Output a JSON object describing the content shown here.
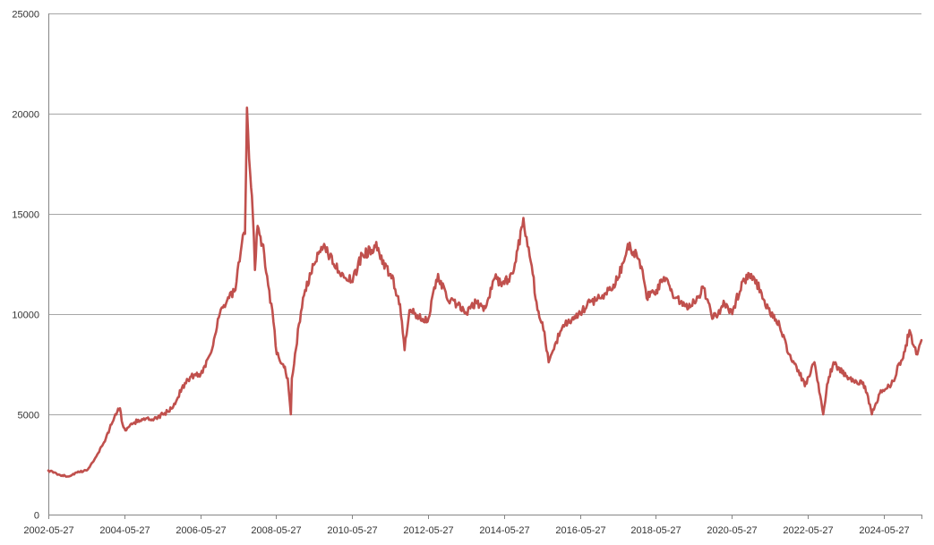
{
  "chart_data": {
    "type": "line",
    "title": "",
    "xlabel": "",
    "ylabel": "",
    "grid": true,
    "legend": "none",
    "line_color": "#c0504d",
    "ylim": [
      0,
      25000
    ],
    "xlim": [
      "2002-05-27",
      "2025-05-27"
    ],
    "y_ticks": [
      "0",
      "5000",
      "10000",
      "15000",
      "20000",
      "25000"
    ],
    "x_ticks": [
      "2002-05-27",
      "2004-05-27",
      "2006-05-27",
      "2008-05-27",
      "2010-05-27",
      "2012-05-27",
      "2014-05-27",
      "2016-05-27",
      "2018-05-27",
      "2020-05-27",
      "2022-05-27",
      "2024-05-27"
    ],
    "series": [
      {
        "x": [
          "2002-05-27",
          "2002-09-01",
          "2002-12-01",
          "2003-03-01",
          "2003-06-01",
          "2003-09-01",
          "2003-12-01",
          "2004-03-01",
          "2004-04-15",
          "2004-05-10",
          "2004-06-15",
          "2004-09-01",
          "2004-12-01",
          "2005-03-01",
          "2005-06-01",
          "2005-09-01",
          "2005-12-01",
          "2006-03-01",
          "2006-06-01",
          "2006-09-01",
          "2006-12-01",
          "2007-03-01",
          "2007-05-01",
          "2007-07-01",
          "2007-08-01",
          "2007-08-20",
          "2007-09-20",
          "2007-10-15",
          "2007-11-05",
          "2007-12-01",
          "2008-01-15",
          "2008-03-01",
          "2008-05-01",
          "2008-06-01",
          "2008-08-01",
          "2008-09-15",
          "2008-10-15",
          "2008-10-25",
          "2008-11-15",
          "2009-01-01",
          "2009-03-01",
          "2009-06-01",
          "2009-09-01",
          "2009-12-01",
          "2010-03-01",
          "2010-06-01",
          "2010-09-01",
          "2010-12-01",
          "2011-01-15",
          "2011-03-15",
          "2011-06-01",
          "2011-09-01",
          "2011-10-15",
          "2011-12-01",
          "2012-03-01",
          "2012-06-01",
          "2012-09-01",
          "2012-12-01",
          "2013-03-01",
          "2013-06-01",
          "2013-09-01",
          "2013-12-01",
          "2014-03-01",
          "2014-06-01",
          "2014-09-01",
          "2014-12-01",
          "2015-03-01",
          "2015-04-15",
          "2015-06-01",
          "2015-08-01",
          "2015-10-01",
          "2015-12-01",
          "2016-02-01",
          "2016-06-01",
          "2016-09-01",
          "2016-12-01",
          "2017-03-01",
          "2017-06-01",
          "2017-09-01",
          "2017-12-01",
          "2018-01-20",
          "2018-03-01",
          "2018-06-01",
          "2018-09-01",
          "2018-12-01",
          "2019-03-01",
          "2019-06-01",
          "2019-09-01",
          "2019-12-01",
          "2020-03-20",
          "2020-06-01",
          "2020-09-01",
          "2020-12-01",
          "2021-03-01",
          "2021-06-01",
          "2021-09-01",
          "2021-12-01",
          "2022-03-01",
          "2022-05-01",
          "2022-08-01",
          "2022-10-25",
          "2022-12-01",
          "2023-02-01",
          "2023-06-01",
          "2023-09-01",
          "2023-12-01",
          "2024-02-05",
          "2024-05-01",
          "2024-07-01",
          "2024-09-15",
          "2024-10-08",
          "2024-12-01",
          "2025-02-01",
          "2025-04-07",
          "2025-05-27"
        ],
        "y": [
          2200,
          2000,
          1900,
          2100,
          2200,
          2900,
          3800,
          5000,
          5300,
          4500,
          4200,
          4600,
          4800,
          4700,
          5000,
          5300,
          6300,
          6900,
          7000,
          8000,
          10000,
          10800,
          11200,
          13500,
          14000,
          20300,
          17000,
          15000,
          12200,
          14400,
          13500,
          11900,
          9600,
          8000,
          7500,
          6800,
          5000,
          6800,
          7500,
          9500,
          11200,
          12500,
          13500,
          12500,
          12000,
          11600,
          13000,
          13200,
          13600,
          12500,
          12000,
          10500,
          8200,
          10200,
          9800,
          9800,
          12000,
          10700,
          10500,
          10000,
          10600,
          10300,
          11800,
          11500,
          12200,
          14800,
          12000,
          10200,
          9600,
          7600,
          8500,
          9200,
          9600,
          10000,
          10600,
          10800,
          11200,
          11800,
          13500,
          12800,
          12200,
          10800,
          11200,
          11800,
          10800,
          10400,
          10600,
          11300,
          9800,
          10500,
          10000,
          11600,
          12000,
          11200,
          10000,
          9400,
          8000,
          7200,
          6400,
          7600,
          5000,
          6500,
          7600,
          6900,
          6700,
          6400,
          5000,
          6200,
          6300,
          6800,
          7400,
          7800,
          9200,
          8000,
          8700
        ]
      }
    ]
  }
}
